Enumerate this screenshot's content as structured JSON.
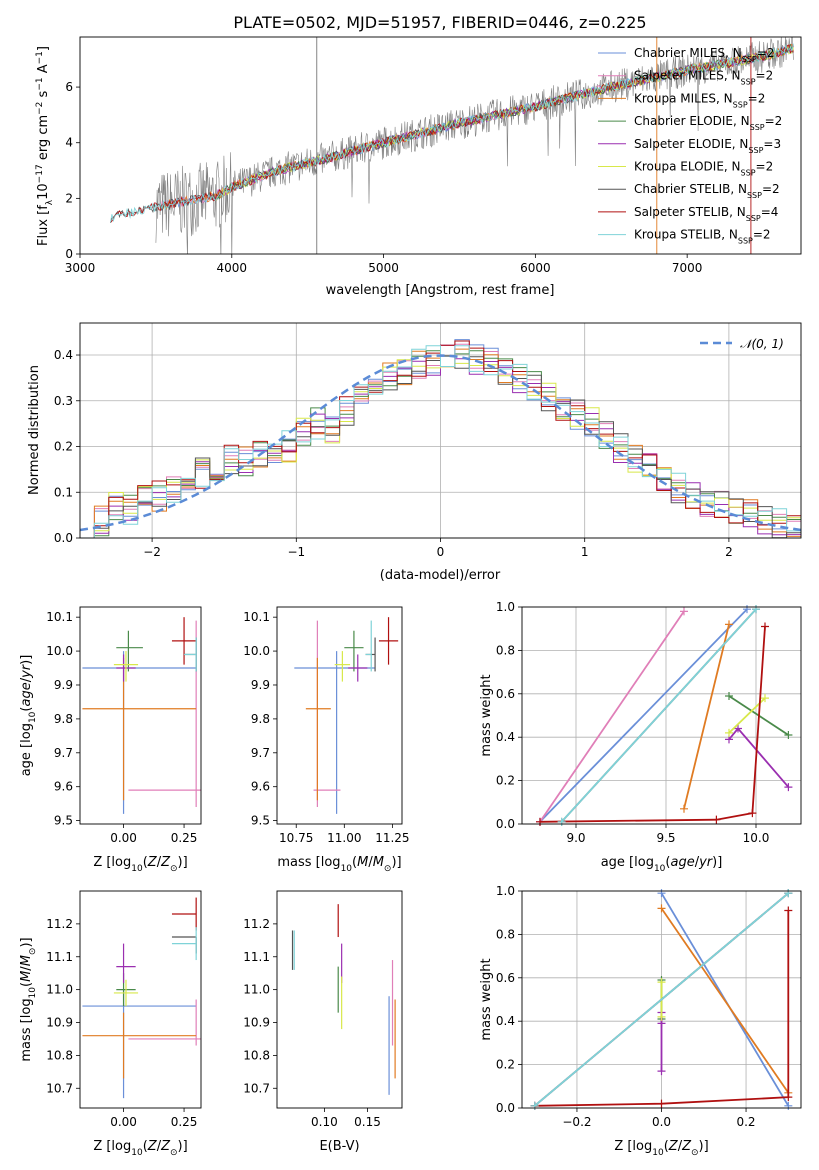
{
  "figure_title": "PLATE=0502, MJD=51957, FIBERID=0446, z=0.225",
  "colors": {
    "Chabrier MILES": "#6a8fd8",
    "Salpeter MILES": "#e07fb8",
    "Kroupa MILES": "#e07b22",
    "Chabrier ELODIE": "#4a8a4a",
    "Salpeter ELODIE": "#9a2fb0",
    "Kroupa ELODIE": "#d8e84a",
    "Chabrier STELIB": "#555555",
    "Salpeter STELIB": "#b01010",
    "Kroupa STELIB": "#7fd3d8",
    "data": "#808080",
    "normal": "#5b8bd6"
  },
  "chart_data": [
    {
      "id": "spectrum",
      "type": "line",
      "title": "PLATE=0502, MJD=51957, FIBERID=0446, z=0.225",
      "xlabel": "wavelength [Angstrom, rest frame]",
      "ylabel": "Flux [f",
      "ylabel_parts": [
        "Flux [f",
        "λ",
        "10",
        "−17",
        " erg cm",
        "−2",
        " s",
        "−1",
        " A",
        "−1",
        "]"
      ],
      "xlim": [
        3000,
        7750
      ],
      "ylim": [
        0,
        7.8
      ],
      "xticks": [
        3000,
        4000,
        5000,
        6000,
        7000
      ],
      "yticks": [
        0,
        2,
        4,
        6
      ],
      "legend": [
        {
          "name": "Chabrier MILES",
          "label": "Chabrier MILES, N",
          "n": "=2"
        },
        {
          "name": "Salpeter MILES",
          "label": "Salpeter MILES, N",
          "n": "=2"
        },
        {
          "name": "Kroupa MILES",
          "label": "Kroupa MILES, N",
          "n": "=2"
        },
        {
          "name": "Chabrier ELODIE",
          "label": "Chabrier ELODIE, N",
          "n": "=2"
        },
        {
          "name": "Salpeter ELODIE",
          "label": "Salpeter ELODIE, N",
          "n": "=3"
        },
        {
          "name": "Kroupa ELODIE",
          "label": "Kroupa ELODIE, N",
          "n": "=2"
        },
        {
          "name": "Chabrier STELIB",
          "label": "Chabrier STELIB, N",
          "n": "=2"
        },
        {
          "name": "Salpeter STELIB",
          "label": "Salpeter STELIB, N",
          "n": "=4"
        },
        {
          "name": "Kroupa STELIB",
          "label": "Kroupa STELIB, N",
          "n": "=2"
        }
      ],
      "legend_sub": "SSP",
      "continuum": [
        [
          3200,
          1.3
        ],
        [
          3500,
          1.7
        ],
        [
          3900,
          2.1
        ],
        [
          4000,
          2.4
        ],
        [
          4300,
          3.0
        ],
        [
          4600,
          3.4
        ],
        [
          5000,
          4.0
        ],
        [
          5500,
          4.7
        ],
        [
          6000,
          5.3
        ],
        [
          6500,
          6.0
        ],
        [
          7000,
          6.6
        ],
        [
          7500,
          7.1
        ],
        [
          7700,
          7.4
        ]
      ]
    },
    {
      "id": "residuals",
      "type": "line",
      "xlabel": "(data-model)/error",
      "ylabel": "Normed distribution",
      "xlim": [
        -2.5,
        2.5
      ],
      "ylim": [
        0,
        0.47
      ],
      "xticks": [
        -2,
        -1,
        0,
        1,
        2
      ],
      "yticks": [
        0.0,
        0.1,
        0.2,
        0.3,
        0.4
      ],
      "legend": "𝒩(0, 1)",
      "series_name": "Chabrier MILES",
      "bin_edges_start": -2.5,
      "bin_width": 0.1,
      "values": [
        0.02,
        0.04,
        0.07,
        0.06,
        0.08,
        0.09,
        0.1,
        0.11,
        0.14,
        0.15,
        0.17,
        0.17,
        0.19,
        0.18,
        0.2,
        0.23,
        0.25,
        0.24,
        0.28,
        0.3,
        0.33,
        0.35,
        0.37,
        0.38,
        0.39,
        0.4,
        0.4,
        0.39,
        0.38,
        0.37,
        0.35,
        0.33,
        0.31,
        0.29,
        0.27,
        0.25,
        0.22,
        0.2,
        0.17,
        0.15,
        0.13,
        0.11,
        0.09,
        0.08,
        0.07,
        0.06,
        0.05,
        0.04,
        0.03,
        0.02
      ]
    },
    {
      "id": "age-vs-Z",
      "type": "scatter",
      "xlabel": "Z [log",
      "ylabel": "age  [log",
      "xlim": [
        -0.18,
        0.32
      ],
      "ylim": [
        9.49,
        10.13
      ],
      "xticks": [
        0.0,
        0.25
      ],
      "yticks": [
        9.5,
        9.6,
        9.7,
        9.8,
        9.9,
        10.0,
        10.1
      ],
      "points": [
        {
          "series": "Chabrier MILES",
          "x": 0.0,
          "y": 9.95,
          "xerr": [
            0.17,
            0.3
          ],
          "yerr": [
            0.43,
            0.05
          ]
        },
        {
          "series": "Salpeter MILES",
          "x": 0.3,
          "y": 9.59,
          "xerr": [
            0.28,
            0.3
          ],
          "yerr": [
            0.05,
            0.5
          ]
        },
        {
          "series": "Kroupa MILES",
          "x": 0.0,
          "y": 9.83,
          "xerr": [
            0.17,
            0.3
          ],
          "yerr": [
            0.27,
            0.15
          ]
        },
        {
          "series": "Chabrier ELODIE",
          "x": 0.02,
          "y": 10.01,
          "xerr": [
            0.05,
            0.06
          ],
          "yerr": [
            0.07,
            0.05
          ]
        },
        {
          "series": "Salpeter ELODIE",
          "x": 0.0,
          "y": 9.95,
          "xerr": [
            0.03,
            0.05
          ],
          "yerr": [
            0.04,
            0.04
          ]
        },
        {
          "series": "Kroupa ELODIE",
          "x": 0.01,
          "y": 9.96,
          "xerr": [
            0.05,
            0.05
          ],
          "yerr": [
            0.05,
            0.04
          ]
        },
        {
          "series": "Chabrier STELIB",
          "x": 0.3,
          "y": 9.99,
          "xerr": [
            0.05,
            0.0
          ],
          "yerr": [
            0.05,
            0.05
          ]
        },
        {
          "series": "Salpeter STELIB",
          "x": 0.25,
          "y": 10.03,
          "xerr": [
            0.05,
            0.05
          ],
          "yerr": [
            0.07,
            0.07
          ]
        },
        {
          "series": "Kroupa STELIB",
          "x": 0.3,
          "y": 9.99,
          "xerr": [
            0.05,
            0.0
          ],
          "yerr": [
            0.05,
            0.05
          ]
        }
      ]
    },
    {
      "id": "age-vs-mass",
      "type": "scatter",
      "xlabel": "mass [log",
      "xlim": [
        10.65,
        11.3
      ],
      "ylim": [
        9.49,
        10.13
      ],
      "xticks": [
        10.75,
        11.0,
        11.25
      ],
      "yticks": [
        9.5,
        9.6,
        9.7,
        9.8,
        9.9,
        10.0,
        10.1
      ],
      "points": [
        {
          "series": "Chabrier MILES",
          "x": 10.96,
          "y": 9.95,
          "xerr": [
            0.22,
            0.2
          ],
          "yerr": [
            0.43,
            0.05
          ]
        },
        {
          "series": "Salpeter MILES",
          "x": 10.86,
          "y": 9.59,
          "xerr": [
            0.02,
            0.12
          ],
          "yerr": [
            0.05,
            0.5
          ]
        },
        {
          "series": "Kroupa MILES",
          "x": 10.86,
          "y": 9.83,
          "xerr": [
            0.06,
            0.07
          ],
          "yerr": [
            0.27,
            0.15
          ]
        },
        {
          "series": "Chabrier ELODIE",
          "x": 11.05,
          "y": 10.01,
          "xerr": [
            0.05,
            0.05
          ],
          "yerr": [
            0.07,
            0.05
          ]
        },
        {
          "series": "Salpeter ELODIE",
          "x": 11.07,
          "y": 9.95,
          "xerr": [
            0.05,
            0.05
          ],
          "yerr": [
            0.04,
            0.04
          ]
        },
        {
          "series": "Kroupa ELODIE",
          "x": 10.99,
          "y": 9.96,
          "xerr": [
            0.04,
            0.04
          ],
          "yerr": [
            0.05,
            0.04
          ]
        },
        {
          "series": "Chabrier STELIB",
          "x": 11.16,
          "y": 9.99,
          "xerr": [
            0.05,
            0.0
          ],
          "yerr": [
            0.05,
            0.05
          ]
        },
        {
          "series": "Salpeter STELIB",
          "x": 11.23,
          "y": 10.03,
          "xerr": [
            0.05,
            0.05
          ],
          "yerr": [
            0.07,
            0.07
          ]
        },
        {
          "series": "Kroupa STELIB",
          "x": 11.14,
          "y": 9.99,
          "xerr": [
            0.03,
            0.0
          ],
          "yerr": [
            0.05,
            0.1
          ]
        }
      ]
    },
    {
      "id": "weight-vs-age",
      "type": "line",
      "xlabel": "age  [log",
      "ylabel": "mass weight",
      "xlim": [
        8.7,
        10.25
      ],
      "ylim": [
        0,
        1.0
      ],
      "xticks": [
        9.0,
        9.5,
        10.0
      ],
      "yticks": [
        0.0,
        0.2,
        0.4,
        0.6,
        0.8,
        1.0
      ],
      "series": [
        {
          "name": "Chabrier MILES",
          "x": [
            8.8,
            9.95
          ],
          "y": [
            0.01,
            0.99
          ]
        },
        {
          "name": "Salpeter MILES",
          "x": [
            8.8,
            9.6
          ],
          "y": [
            0.01,
            0.98
          ]
        },
        {
          "name": "Kroupa MILES",
          "x": [
            9.6,
            9.85
          ],
          "y": [
            0.07,
            0.92
          ]
        },
        {
          "name": "Chabrier ELODIE",
          "x": [
            9.85,
            10.18
          ],
          "y": [
            0.59,
            0.41
          ]
        },
        {
          "name": "Salpeter ELODIE",
          "x": [
            9.85,
            9.9,
            10.18
          ],
          "y": [
            0.39,
            0.44,
            0.17
          ]
        },
        {
          "name": "Kroupa ELODIE",
          "x": [
            9.85,
            10.05
          ],
          "y": [
            0.42,
            0.58
          ]
        },
        {
          "name": "Chabrier STELIB",
          "x": [
            8.92,
            10.0
          ],
          "y": [
            0.01,
            0.99
          ]
        },
        {
          "name": "Salpeter STELIB",
          "x": [
            8.8,
            9.78,
            9.98,
            10.05
          ],
          "y": [
            0.01,
            0.02,
            0.05,
            0.91
          ]
        },
        {
          "name": "Kroupa STELIB",
          "x": [
            8.92,
            10.0
          ],
          "y": [
            0.01,
            0.99
          ]
        }
      ]
    },
    {
      "id": "mass-vs-Z",
      "type": "scatter",
      "xlabel": "Z [log",
      "ylabel": "mass [log",
      "xlim": [
        -0.18,
        0.32
      ],
      "ylim": [
        10.64,
        11.3
      ],
      "xticks": [
        0.0,
        0.25
      ],
      "yticks": [
        10.7,
        10.8,
        10.9,
        11.0,
        11.1,
        11.2
      ],
      "points": [
        {
          "series": "Chabrier MILES",
          "x": 0.0,
          "y": 10.95,
          "xerr": [
            0.17,
            0.3
          ],
          "yerr": [
            0.28,
            0.05
          ]
        },
        {
          "series": "Salpeter MILES",
          "x": 0.3,
          "y": 10.85,
          "xerr": [
            0.28,
            0.3
          ],
          "yerr": [
            0.02,
            0.12
          ]
        },
        {
          "series": "Kroupa MILES",
          "x": 0.0,
          "y": 10.86,
          "xerr": [
            0.17,
            0.3
          ],
          "yerr": [
            0.13,
            0.07
          ]
        },
        {
          "series": "Chabrier ELODIE",
          "x": 0.0,
          "y": 11.0,
          "xerr": [
            0.03,
            0.05
          ],
          "yerr": [
            0.05,
            0.05
          ]
        },
        {
          "series": "Salpeter ELODIE",
          "x": 0.0,
          "y": 11.07,
          "xerr": [
            0.03,
            0.05
          ],
          "yerr": [
            0.05,
            0.07
          ]
        },
        {
          "series": "Kroupa ELODIE",
          "x": 0.01,
          "y": 10.99,
          "xerr": [
            0.05,
            0.05
          ],
          "yerr": [
            0.04,
            0.04
          ]
        },
        {
          "series": "Chabrier STELIB",
          "x": 0.3,
          "y": 11.16,
          "xerr": [
            0.1,
            0.0
          ],
          "yerr": [
            0.05,
            0.0
          ]
        },
        {
          "series": "Salpeter STELIB",
          "x": 0.3,
          "y": 11.23,
          "xerr": [
            0.1,
            0.0
          ],
          "yerr": [
            0.05,
            0.05
          ]
        },
        {
          "series": "Kroupa STELIB",
          "x": 0.3,
          "y": 11.14,
          "xerr": [
            0.1,
            0.0
          ],
          "yerr": [
            0.05,
            0.05
          ]
        }
      ]
    },
    {
      "id": "mass-vs-EBV",
      "type": "scatter",
      "xlabel": "E(B-V)",
      "xlim": [
        0.045,
        0.19
      ],
      "ylim": [
        10.64,
        11.3
      ],
      "xticks": [
        0.1,
        0.15
      ],
      "yticks": [
        10.7,
        10.8,
        10.9,
        11.0,
        11.1,
        11.2
      ],
      "points": [
        {
          "series": "Chabrier MILES",
          "x": 0.175,
          "y": 10.84,
          "yerr": [
            0.16,
            0.14
          ]
        },
        {
          "series": "Salpeter MILES",
          "x": 0.179,
          "y": 10.96,
          "yerr": [
            0.13,
            0.13
          ]
        },
        {
          "series": "Kroupa MILES",
          "x": 0.182,
          "y": 10.85,
          "yerr": [
            0.12,
            0.12
          ]
        },
        {
          "series": "Chabrier ELODIE",
          "x": 0.116,
          "y": 11.0,
          "yerr": [
            0.07,
            0.07
          ]
        },
        {
          "series": "Salpeter ELODIE",
          "x": 0.12,
          "y": 11.08,
          "yerr": [
            0.06,
            0.06
          ]
        },
        {
          "series": "Kroupa ELODIE",
          "x": 0.12,
          "y": 10.96,
          "yerr": [
            0.08,
            0.08
          ]
        },
        {
          "series": "Chabrier STELIB",
          "x": 0.063,
          "y": 11.12,
          "yerr": [
            0.06,
            0.06
          ]
        },
        {
          "series": "Salpeter STELIB",
          "x": 0.116,
          "y": 11.21,
          "yerr": [
            0.05,
            0.05
          ]
        },
        {
          "series": "Kroupa STELIB",
          "x": 0.065,
          "y": 11.12,
          "yerr": [
            0.06,
            0.06
          ]
        }
      ]
    },
    {
      "id": "weight-vs-Z",
      "type": "line",
      "xlabel": "Z [log",
      "ylabel": "mass weight",
      "xlim": [
        -0.33,
        0.33
      ],
      "ylim": [
        0,
        1.0
      ],
      "xticks": [
        -0.2,
        0.0,
        0.2
      ],
      "yticks": [
        0.0,
        0.2,
        0.4,
        0.6,
        0.8,
        1.0
      ],
      "series": [
        {
          "name": "Chabrier MILES",
          "x": [
            0.0,
            0.3
          ],
          "y": [
            0.99,
            0.01
          ]
        },
        {
          "name": "Salpeter MILES",
          "x": [
            -0.3,
            0.3
          ],
          "y": [
            0.01,
            0.99
          ]
        },
        {
          "name": "Kroupa MILES",
          "x": [
            0.0,
            0.3
          ],
          "y": [
            0.92,
            0.07
          ]
        },
        {
          "name": "Chabrier ELODIE",
          "x": [
            0.0,
            0.0
          ],
          "y": [
            0.59,
            0.41
          ]
        },
        {
          "name": "Salpeter ELODIE",
          "x": [
            0.0,
            0.0,
            0.0
          ],
          "y": [
            0.39,
            0.44,
            0.17
          ]
        },
        {
          "name": "Kroupa ELODIE",
          "x": [
            0.0,
            0.0
          ],
          "y": [
            0.42,
            0.58
          ]
        },
        {
          "name": "Chabrier STELIB",
          "x": [
            -0.3,
            0.3
          ],
          "y": [
            0.01,
            0.99
          ]
        },
        {
          "name": "Salpeter STELIB",
          "x": [
            -0.3,
            0.0,
            0.3,
            0.3
          ],
          "y": [
            0.01,
            0.02,
            0.05,
            0.91
          ]
        },
        {
          "name": "Kroupa STELIB",
          "x": [
            -0.3,
            0.3
          ],
          "y": [
            0.01,
            0.99
          ]
        }
      ]
    }
  ]
}
